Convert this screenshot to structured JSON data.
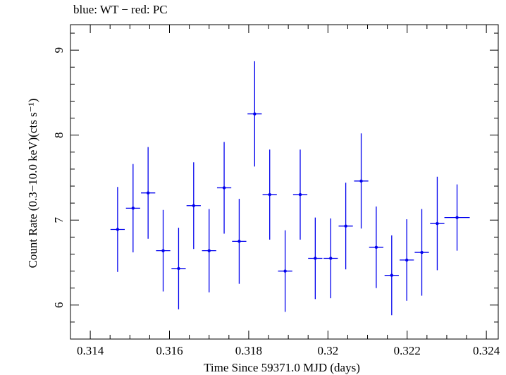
{
  "chart_data": {
    "type": "scatter",
    "title": "blue: WT − red: PC",
    "xlabel": "Time Since 59371.0 MJD (days)",
    "ylabel": "Count Rate (0.3−10.0 keV)(cts s⁻¹)",
    "xlim": [
      0.3135,
      0.3243
    ],
    "ylim": [
      5.6,
      9.3
    ],
    "xticks": [
      0.314,
      0.316,
      0.318,
      0.32,
      0.322,
      0.324
    ],
    "xtick_labels": [
      "0.314",
      "0.316",
      "0.318",
      "0.32",
      "0.322",
      "0.324"
    ],
    "yticks": [
      6,
      7,
      8,
      9
    ],
    "ytick_labels": [
      "6",
      "7",
      "8",
      "9"
    ],
    "grid": false,
    "series": [
      {
        "color": "#0000ee",
        "points": [
          {
            "x": 0.31469,
            "xerr": 0.00018,
            "y": 6.89,
            "yerr": 0.5
          },
          {
            "x": 0.31508,
            "xerr": 0.00018,
            "y": 7.14,
            "yerr": 0.52
          },
          {
            "x": 0.31546,
            "xerr": 0.00018,
            "y": 7.32,
            "yerr": 0.54
          },
          {
            "x": 0.31584,
            "xerr": 0.00018,
            "y": 6.64,
            "yerr": 0.48
          },
          {
            "x": 0.31623,
            "xerr": 0.00018,
            "y": 6.43,
            "yerr": 0.48
          },
          {
            "x": 0.31661,
            "xerr": 0.00018,
            "y": 7.17,
            "yerr": 0.51
          },
          {
            "x": 0.317,
            "xerr": 0.00018,
            "y": 6.64,
            "yerr": 0.49
          },
          {
            "x": 0.31738,
            "xerr": 0.00018,
            "y": 7.38,
            "yerr": 0.54
          },
          {
            "x": 0.31776,
            "xerr": 0.00018,
            "y": 6.75,
            "yerr": 0.5
          },
          {
            "x": 0.31815,
            "xerr": 0.00018,
            "y": 8.25,
            "yerr": 0.62
          },
          {
            "x": 0.31853,
            "xerr": 0.00018,
            "y": 7.3,
            "yerr": 0.53
          },
          {
            "x": 0.31892,
            "xerr": 0.00018,
            "y": 6.4,
            "yerr": 0.48
          },
          {
            "x": 0.3193,
            "xerr": 0.00018,
            "y": 7.3,
            "yerr": 0.53
          },
          {
            "x": 0.31968,
            "xerr": 0.00018,
            "y": 6.55,
            "yerr": 0.48
          },
          {
            "x": 0.32007,
            "xerr": 0.00018,
            "y": 6.55,
            "yerr": 0.47
          },
          {
            "x": 0.32045,
            "xerr": 0.00018,
            "y": 6.93,
            "yerr": 0.51
          },
          {
            "x": 0.32084,
            "xerr": 0.00018,
            "y": 7.46,
            "yerr": 0.56
          },
          {
            "x": 0.32122,
            "xerr": 0.00018,
            "y": 6.68,
            "yerr": 0.48
          },
          {
            "x": 0.32161,
            "xerr": 0.00018,
            "y": 6.35,
            "yerr": 0.47
          },
          {
            "x": 0.32199,
            "xerr": 0.00018,
            "y": 6.53,
            "yerr": 0.48
          },
          {
            "x": 0.32237,
            "xerr": 0.00018,
            "y": 6.62,
            "yerr": 0.51
          },
          {
            "x": 0.32276,
            "xerr": 0.00018,
            "y": 6.96,
            "yerr": 0.55
          },
          {
            "x": 0.32326,
            "xerr": 0.00032,
            "y": 7.03,
            "yerr": 0.39
          }
        ]
      }
    ]
  }
}
